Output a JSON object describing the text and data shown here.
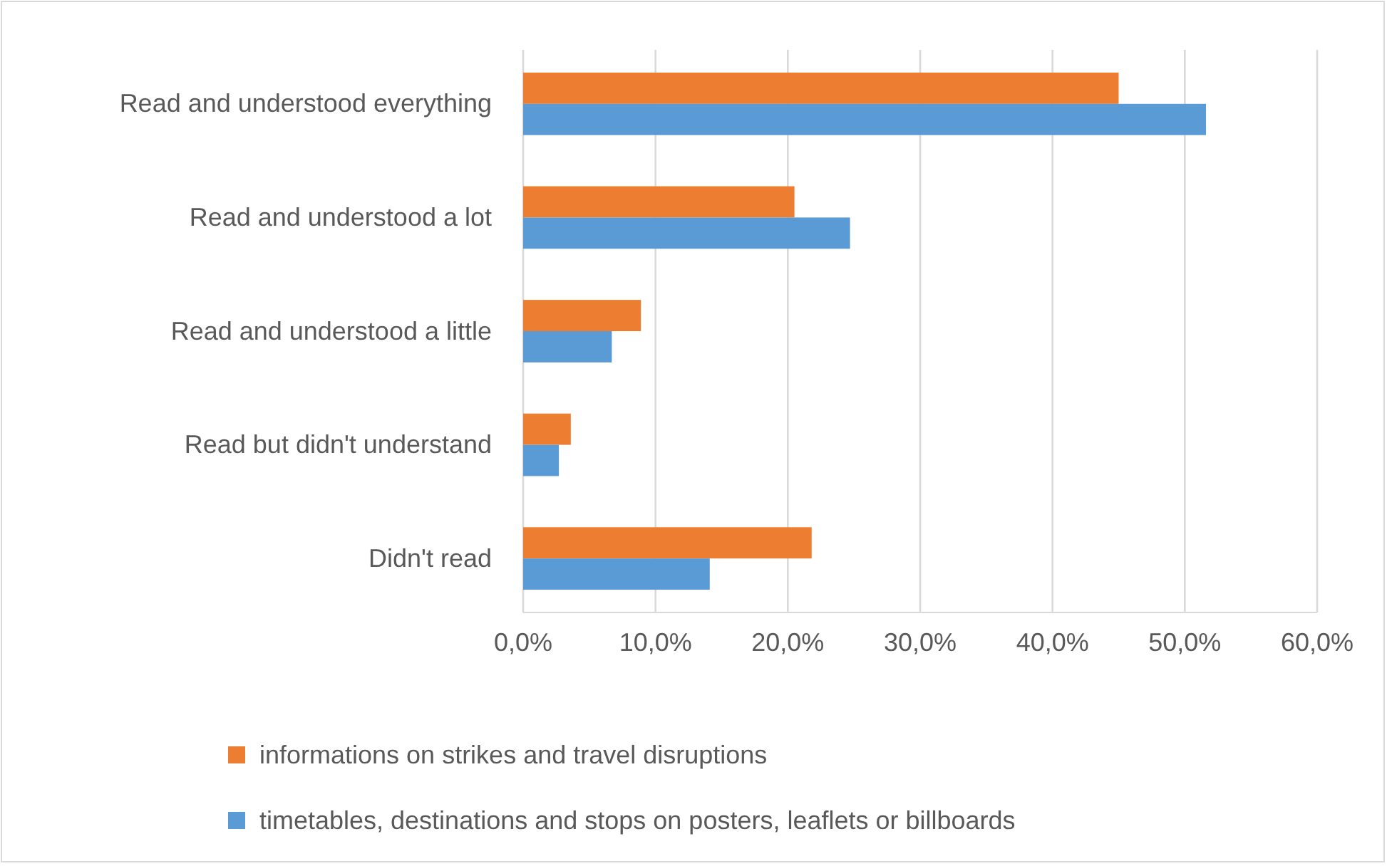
{
  "chart_data": {
    "type": "bar",
    "orientation": "horizontal",
    "categories": [
      "Read and understood everything",
      "Read and understood a lot",
      "Read and understood a little",
      "Read but didn't understand",
      "Didn't read"
    ],
    "series": [
      {
        "name": "informations on strikes and travel disruptions",
        "color": "#ed7d31",
        "values": [
          45.0,
          20.5,
          8.9,
          3.6,
          21.8
        ]
      },
      {
        "name": "timetables, destinations and stops on posters, leaflets or billboards",
        "color": "#5b9bd5",
        "values": [
          51.6,
          24.7,
          6.7,
          2.7,
          14.1
        ]
      }
    ],
    "xlim": [
      0,
      60
    ],
    "xticks": [
      {
        "value": 0,
        "label": "0,0%"
      },
      {
        "value": 10,
        "label": "10,0%"
      },
      {
        "value": 20,
        "label": "20,0%"
      },
      {
        "value": 30,
        "label": "30,0%"
      },
      {
        "value": 40,
        "label": "40,0%"
      },
      {
        "value": 50,
        "label": "50,0%"
      },
      {
        "value": 60,
        "label": "60,0%"
      }
    ],
    "grid": "x",
    "legend": "bottom"
  }
}
